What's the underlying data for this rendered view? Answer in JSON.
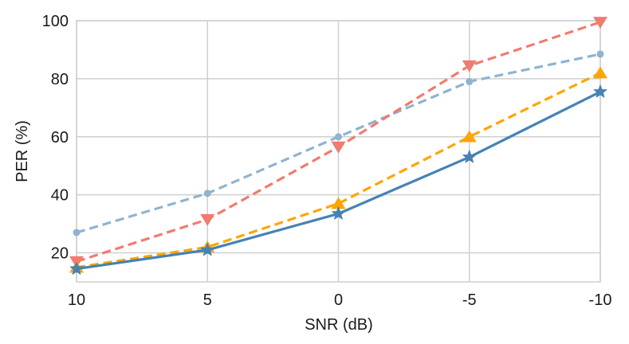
{
  "chart_data": {
    "type": "line",
    "xlabel": "SNR (dB)",
    "ylabel": "PER (%)",
    "categories": [
      "10",
      "5",
      "0",
      "-5",
      "-10"
    ],
    "ylim": [
      10,
      100
    ],
    "yticks": [
      20,
      40,
      60,
      80,
      100
    ],
    "grid": true,
    "legend": "none",
    "series": [
      {
        "values": [
          27,
          40.5,
          60,
          79,
          88.5
        ],
        "color": "#8fb3d1",
        "marker": "circle",
        "dash": "dashed"
      },
      {
        "values": [
          17,
          31.5,
          56.5,
          84.5,
          99.5
        ],
        "color": "#f07b70",
        "marker": "triangle-down",
        "dash": "dashed"
      },
      {
        "values": [
          15,
          22,
          37,
          60,
          82
        ],
        "color": "#ffa500",
        "marker": "triangle-up",
        "dash": "dashed"
      },
      {
        "values": [
          14.5,
          21,
          33.5,
          53,
          75.5
        ],
        "color": "#4682b4",
        "marker": "star",
        "dash": "solid"
      }
    ]
  }
}
